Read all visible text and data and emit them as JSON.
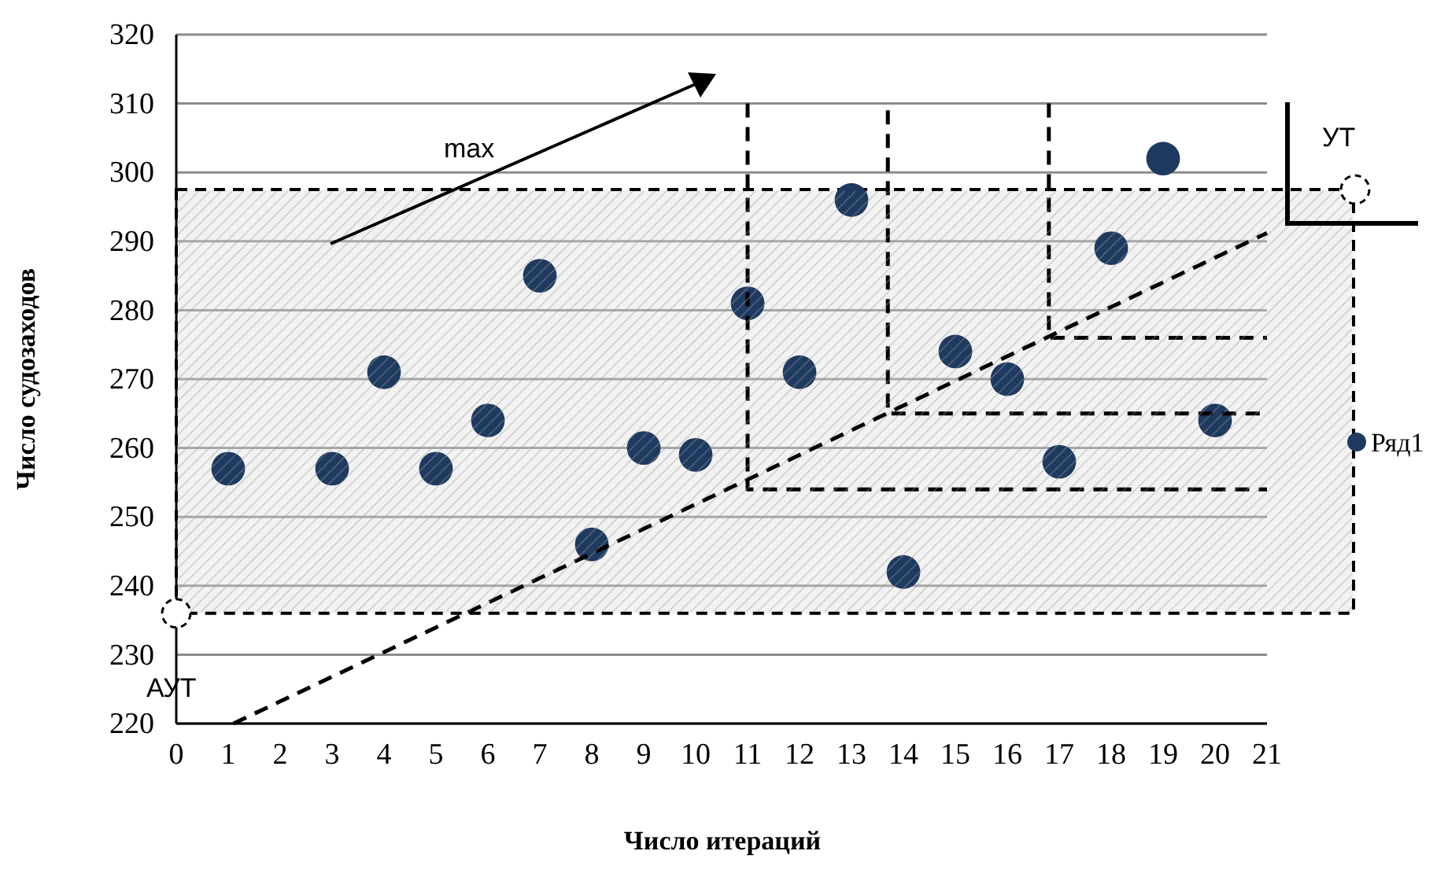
{
  "chart_data": {
    "type": "scatter",
    "xlabel": "Число итераций",
    "ylabel": "Число судозаходов",
    "xlim": [
      0,
      21
    ],
    "xticks": [
      0,
      1,
      2,
      3,
      4,
      5,
      6,
      7,
      8,
      9,
      10,
      11,
      12,
      13,
      14,
      15,
      16,
      17,
      18,
      19,
      20,
      21
    ],
    "ylim": [
      220,
      320
    ],
    "yticks": [
      220,
      230,
      240,
      250,
      260,
      270,
      280,
      290,
      300,
      310,
      320
    ],
    "grid": "y",
    "legend": "right",
    "marker": "circle",
    "series": [
      {
        "name": "Ряд1",
        "color": "#1f3a60",
        "x": [
          1,
          3,
          4,
          5,
          6,
          7,
          8,
          9,
          10,
          11,
          12,
          13,
          14,
          15,
          16,
          17,
          18,
          19,
          20
        ],
        "values": [
          257,
          257,
          271,
          257,
          264,
          285,
          246,
          260,
          259,
          281,
          271,
          296,
          242,
          274,
          270,
          258,
          289,
          302,
          264
        ]
      },
      {
        "type": "line",
        "color": "#000000",
        "line_style": "dashed",
        "marker": "none",
        "x": [
          1.1,
          21
        ],
        "values": [
          220,
          291.2
        ]
      },
      {
        "type": "line",
        "color": "#000000",
        "line_style": "dashed",
        "marker": "none",
        "x": [
          11,
          11,
          21
        ],
        "values": [
          310,
          254,
          254
        ]
      },
      {
        "type": "line",
        "color": "#000000",
        "line_style": "dashed",
        "marker": "none",
        "x": [
          13.7,
          13.7,
          21
        ],
        "values": [
          309,
          265,
          265
        ]
      },
      {
        "type": "line",
        "color": "#000000",
        "line_style": "dashed",
        "marker": "none",
        "x": [
          16.8,
          16.8,
          21
        ],
        "values": [
          310,
          276,
          276
        ]
      }
    ],
    "bands": [
      {
        "axis": "y",
        "from": 236,
        "to": 297.5,
        "color": "#d9d9d9"
      }
    ],
    "annotations": [
      "max",
      "УТ",
      "АУТ"
    ]
  }
}
